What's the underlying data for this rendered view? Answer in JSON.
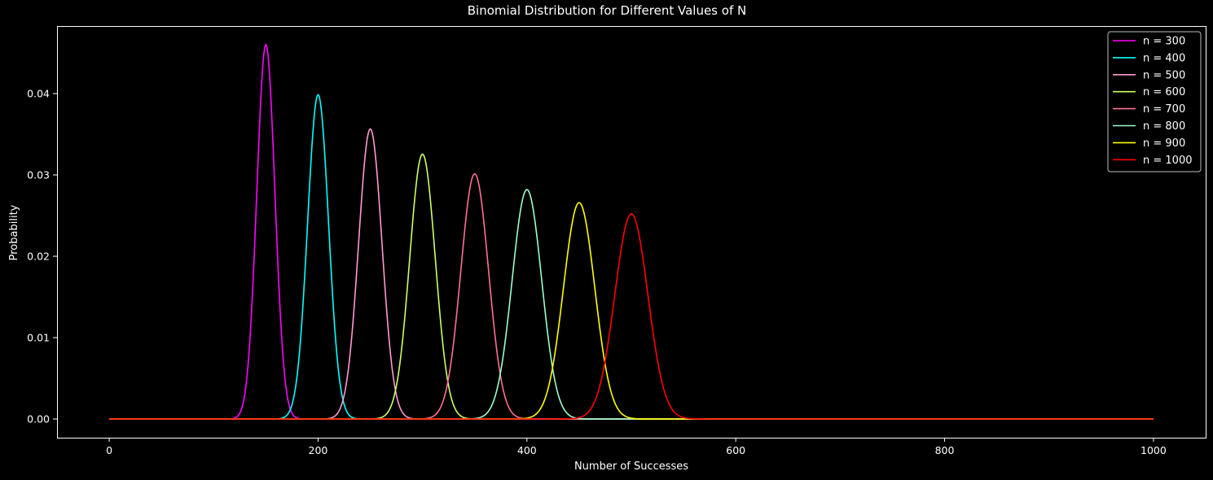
{
  "chart_data": {
    "type": "line",
    "title": "Binomial Distribution for Different Values of N",
    "xlabel": "Number of Successes",
    "ylabel": "Probability",
    "xlim": [
      -50,
      1050
    ],
    "ylim": [
      -0.0023,
      0.0483
    ],
    "xticks": [
      0,
      200,
      400,
      600,
      800,
      1000
    ],
    "xtick_labels": [
      "0",
      "200",
      "400",
      "600",
      "800",
      "1000"
    ],
    "yticks": [
      0.0,
      0.01,
      0.02,
      0.03,
      0.04
    ],
    "ytick_labels": [
      "0.00",
      "0.01",
      "0.02",
      "0.03",
      "0.04"
    ],
    "grid": false,
    "legend_position": "top-right",
    "x_range": [
      0,
      1000
    ],
    "p": 0.5,
    "series": [
      {
        "name": "n = 300",
        "n": 300,
        "peak_x": 150,
        "peak_y": 0.046,
        "color": "#ff00ff"
      },
      {
        "name": "n = 400",
        "n": 400,
        "peak_x": 200,
        "peak_y": 0.0399,
        "color": "#00ffff"
      },
      {
        "name": "n = 500",
        "n": 500,
        "peak_x": 250,
        "peak_y": 0.0357,
        "color": "#ff99cc"
      },
      {
        "name": "n = 600",
        "n": 600,
        "peak_x": 300,
        "peak_y": 0.0326,
        "color": "#ccff66"
      },
      {
        "name": "n = 700",
        "n": 700,
        "peak_x": 350,
        "peak_y": 0.0302,
        "color": "#ff6f91"
      },
      {
        "name": "n = 800",
        "n": 800,
        "peak_x": 400,
        "peak_y": 0.0282,
        "color": "#99ffcc"
      },
      {
        "name": "n = 900",
        "n": 900,
        "peak_x": 450,
        "peak_y": 0.0266,
        "color": "#ffff00"
      },
      {
        "name": "n = 1000",
        "n": 1000,
        "peak_x": 500,
        "peak_y": 0.0252,
        "color": "#ff0000"
      }
    ]
  }
}
